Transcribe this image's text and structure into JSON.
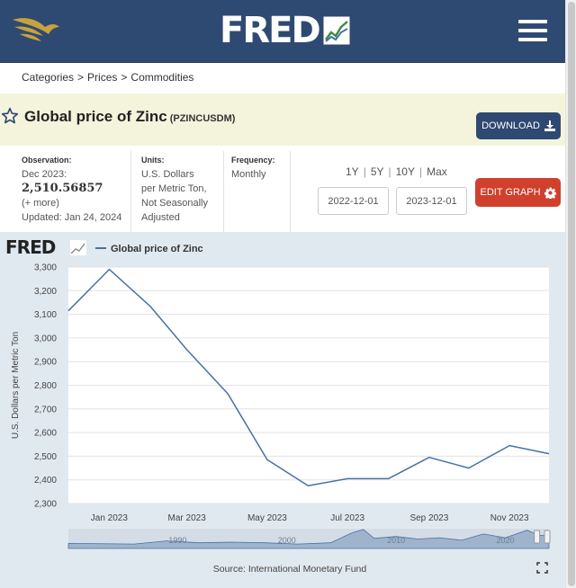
{
  "header": {
    "logo_text": "FRED",
    "menu_icon": "hamburger-icon",
    "brand_color": "#2f4a72"
  },
  "breadcrumb": {
    "items": [
      "Categories",
      "Prices",
      "Commodities"
    ],
    "separator": ">"
  },
  "series": {
    "title": "Global price of Zinc",
    "id": "(PZINCUSDM)",
    "download_label": "DOWNLOAD"
  },
  "meta": {
    "observation_label": "Observation:",
    "observation_date": "Dec 2023:",
    "observation_value": "2,510.56857",
    "more": "(+ more)",
    "updated": "Updated: Jan 24, 2024",
    "units_label": "Units:",
    "units_lines": [
      "U.S. Dollars",
      "per Metric Ton,",
      "Not Seasonally",
      "Adjusted"
    ],
    "frequency_label": "Frequency:",
    "frequency_value": "Monthly"
  },
  "controls": {
    "ranges": [
      "1Y",
      "5Y",
      "10Y",
      "Max"
    ],
    "start_date": "2022-12-01",
    "end_date": "2023-12-01",
    "edit_label": "EDIT GRAPH",
    "edit_color": "#d0402d"
  },
  "chart_data": {
    "type": "line",
    "series": [
      {
        "name": "Global price of Zinc",
        "color": "#4572a7",
        "x": [
          "2022-12-01",
          "2023-01-01",
          "2023-02-01",
          "2023-03-01",
          "2023-04-01",
          "2023-05-01",
          "2023-06-01",
          "2023-07-01",
          "2023-08-01",
          "2023-09-01",
          "2023-10-01",
          "2023-11-01",
          "2023-12-01"
        ],
        "values": [
          3115,
          3290,
          3135,
          2950,
          2765,
          2485,
          2375,
          2405,
          2405,
          2495,
          2450,
          2545,
          2510.56857
        ]
      }
    ],
    "ylabel": "U.S. Dollars per Metric Ton",
    "ylim": [
      2300,
      3300
    ],
    "yticks": [
      "2,300",
      "2,400",
      "2,500",
      "2,600",
      "2,700",
      "2,800",
      "2,900",
      "3,000",
      "3,100",
      "3,200",
      "3,300"
    ],
    "yticks_values": [
      2300,
      2400,
      2500,
      2600,
      2700,
      2800,
      2900,
      3000,
      3100,
      3200,
      3300
    ],
    "xticks": [
      {
        "date": "2023-01-01",
        "label": "Jan 2023"
      },
      {
        "date": "2023-03-01",
        "label": "Mar 2023"
      },
      {
        "date": "2023-05-01",
        "label": "May 2023"
      },
      {
        "date": "2023-07-01",
        "label": "Jul 2023"
      },
      {
        "date": "2023-09-01",
        "label": "Sep 2023"
      },
      {
        "date": "2023-11-01",
        "label": "Nov 2023"
      }
    ],
    "xlim": [
      "2022-12-01",
      "2023-12-01"
    ],
    "grid": true,
    "legend_position": "top-left",
    "source": "Source: International Monetary Fund",
    "navigator": {
      "labels": [
        {
          "year": 1990,
          "label": "1990"
        },
        {
          "year": 2000,
          "label": "2000"
        },
        {
          "year": 2010,
          "label": "2010"
        },
        {
          "year": 2020,
          "label": "2020"
        }
      ],
      "range": [
        1980,
        2024
      ]
    }
  }
}
